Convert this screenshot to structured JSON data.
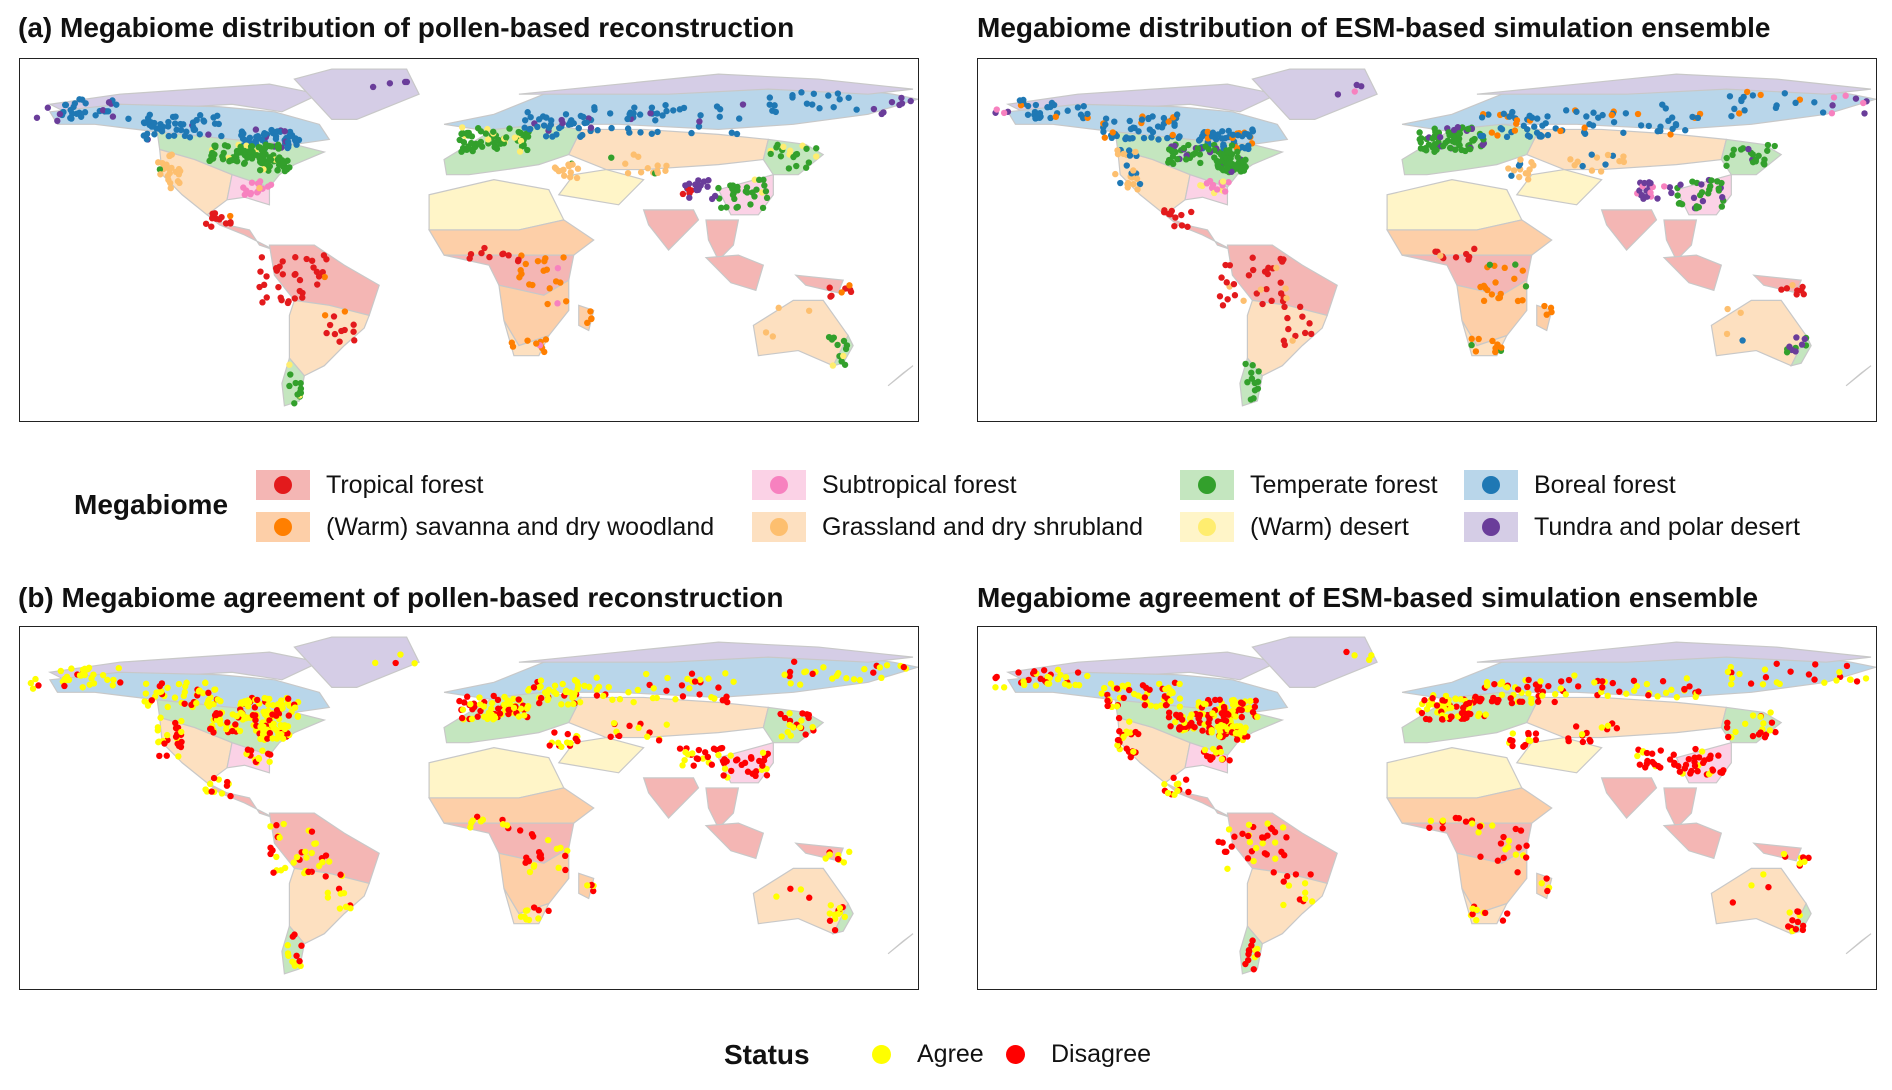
{
  "panels": [
    {
      "title": "(a) Megabiome distribution of pollen-based reconstruction",
      "mode": "biome",
      "seed": 11
    },
    {
      "title": "Megabiome distribution of ESM-based simulation ensemble",
      "mode": "biome",
      "seed": 23
    },
    {
      "title": "(b) Megabiome agreement of pollen-based reconstruction",
      "mode": "status",
      "seed": 37
    },
    {
      "title": "Megabiome agreement of ESM-based simulation ensemble",
      "mode": "status",
      "seed": 53
    }
  ],
  "megabiome_legend": {
    "title": "Megabiome",
    "items": [
      {
        "label": "Tropical forest",
        "fill": "#f4b6b4",
        "dot": "#e31a1c"
      },
      {
        "label": "(Warm) savanna and dry woodland",
        "fill": "#fdcfa8",
        "dot": "#ff7f00"
      },
      {
        "label": "Subtropical forest",
        "fill": "#fbd2e6",
        "dot": "#f781bf"
      },
      {
        "label": "Grassland and dry shrubland",
        "fill": "#fde0c0",
        "dot": "#fdbf6f"
      },
      {
        "label": "Temperate forest",
        "fill": "#c4e6bf",
        "dot": "#33a02c"
      },
      {
        "label": "(Warm) desert",
        "fill": "#fff5c8",
        "dot": "#ffed6f"
      },
      {
        "label": "Boreal forest",
        "fill": "#b9d6ea",
        "dot": "#1f78b4"
      },
      {
        "label": "Tundra and polar desert",
        "fill": "#d5cde6",
        "dot": "#6a3d9a"
      }
    ]
  },
  "status_legend": {
    "title": "Status",
    "items": [
      {
        "label": "Agree",
        "dot": "#ffff00"
      },
      {
        "label": "Disagree",
        "dot": "#ff0000"
      }
    ]
  }
}
